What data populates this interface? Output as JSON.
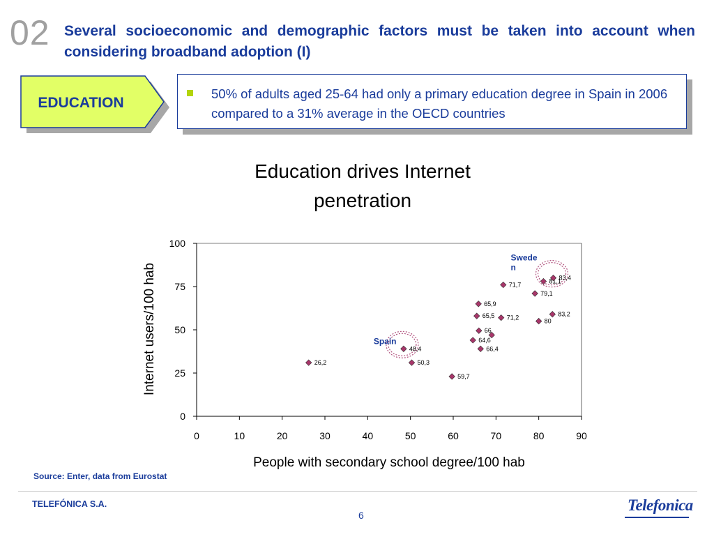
{
  "slide": {
    "number": "02",
    "title": "Several socioeconomic and demographic factors must be taken into account when considering broadband adoption (I)",
    "tag": "EDUCATION",
    "info_text": "50% of adults aged 25-64 had only a primary education degree in Spain in 2006 compared to a 31% average in the OECD countries",
    "source": "Source: Enter, data from Eurostat",
    "company": "TELEFÓNICA S.A.",
    "page": "6",
    "logo_text": "Telefonica"
  },
  "colors": {
    "title_blue": "#1a3c9b",
    "tag_green": "#e2ff66",
    "bullet_green": "#b3d40a",
    "marker_fill": "#a8366a",
    "highlight_circle": "#b1527e"
  },
  "chart_data": {
    "type": "scatter",
    "title": "Education drives Internet penetration",
    "xlabel": "People with secondary school degree/100 hab",
    "ylabel": "Internet users/100 hab",
    "xlim": [
      0,
      90
    ],
    "ylim": [
      0,
      100
    ],
    "xticks": [
      "0",
      "10",
      "20",
      "30",
      "40",
      "50",
      "60",
      "70",
      "80",
      "90"
    ],
    "yticks": [
      "0",
      "25",
      "50",
      "75",
      "100"
    ],
    "grid": false,
    "points": [
      {
        "x": 26.2,
        "y": 31,
        "label": "26,2"
      },
      {
        "x": 48.4,
        "y": 39,
        "label": "48,4"
      },
      {
        "x": 50.3,
        "y": 31,
        "label": "50,3"
      },
      {
        "x": 59.7,
        "y": 23,
        "label": "59,7"
      },
      {
        "x": 64.6,
        "y": 44,
        "label": "64,6"
      },
      {
        "x": 66,
        "y": 49.5,
        "label": "66"
      },
      {
        "x": 69,
        "y": 47,
        "label": ""
      },
      {
        "x": 66.4,
        "y": 39,
        "label": "66,4"
      },
      {
        "x": 65.5,
        "y": 58,
        "label": "65,5"
      },
      {
        "x": 71.2,
        "y": 57,
        "label": "71,2"
      },
      {
        "x": 65.9,
        "y": 65,
        "label": "65,9"
      },
      {
        "x": 71.7,
        "y": 76,
        "label": "71,7"
      },
      {
        "x": 79.1,
        "y": 71,
        "label": "79,1"
      },
      {
        "x": 80,
        "y": 55,
        "label": "80"
      },
      {
        "x": 83.2,
        "y": 59,
        "label": "83,2"
      },
      {
        "x": 81.1,
        "y": 78,
        "label": "81,1"
      },
      {
        "x": 83.4,
        "y": 80,
        "label": "83,4"
      }
    ],
    "annotations": [
      {
        "text": "Sweden",
        "x": 83.4,
        "y": 80
      },
      {
        "text": "Spain",
        "x": 48.4,
        "y": 39
      }
    ]
  }
}
